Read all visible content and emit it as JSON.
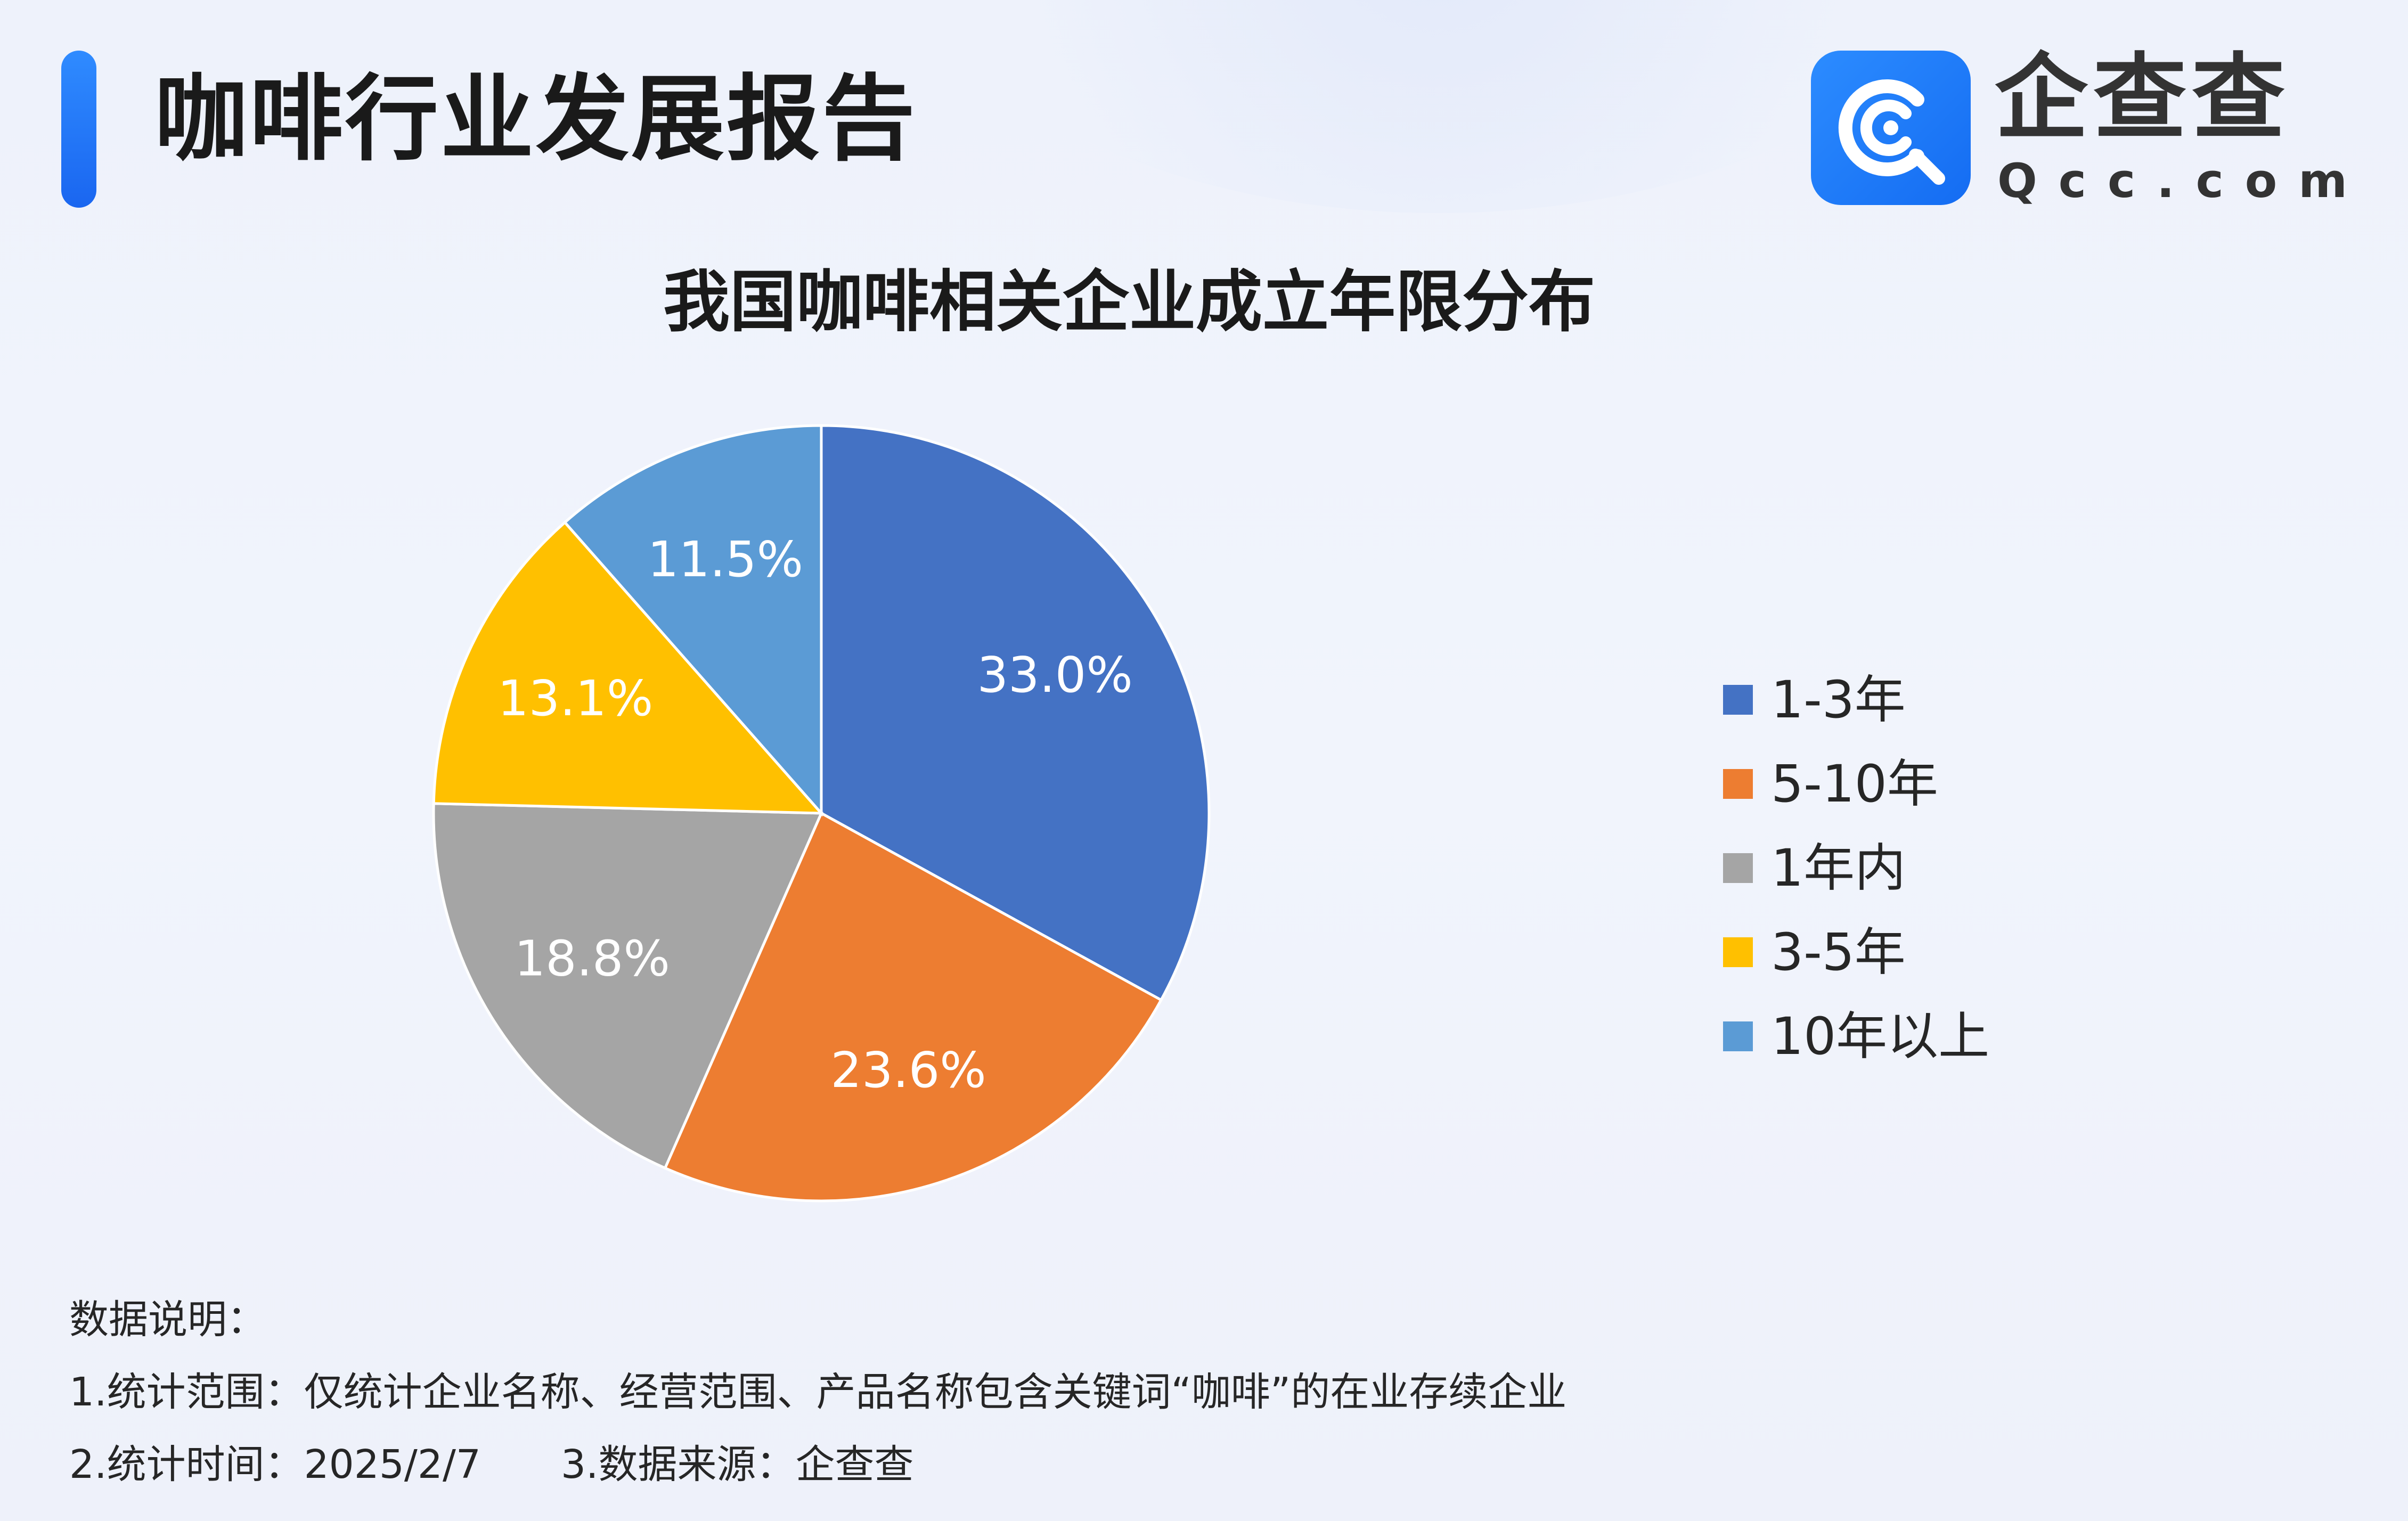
{
  "header": {
    "title": "咖啡行业发展报告",
    "accent_color": "#1f72f5"
  },
  "logo": {
    "icon": "qcc-logo-icon",
    "wordmark": "企查查",
    "domain": "Qcc.com"
  },
  "chart_data": {
    "type": "pie",
    "title": "我国咖啡相关企业成立年限分布",
    "legend_position": "right",
    "slices": [
      {
        "label": "1-3年",
        "value": 33.0,
        "value_label": "33.0%",
        "color": "#4472c4"
      },
      {
        "label": "5-10年",
        "value": 23.6,
        "value_label": "23.6%",
        "color": "#ed7d31"
      },
      {
        "label": "1年内",
        "value": 18.8,
        "value_label": "18.8%",
        "color": "#a5a5a5"
      },
      {
        "label": "3-5年",
        "value": 13.1,
        "value_label": "13.1%",
        "color": "#ffc000"
      },
      {
        "label": "10年以上",
        "value": 11.5,
        "value_label": "11.5%",
        "color": "#5b9bd5"
      }
    ]
  },
  "notes": {
    "heading": "数据说明：",
    "scope": "1.统计范围：仅统计企业名称、经营范围、产品名称包含关键词“咖啡”的在业存续企业",
    "time": "2.统计时间：2025/2/7",
    "source": "3.数据来源：企查查"
  }
}
